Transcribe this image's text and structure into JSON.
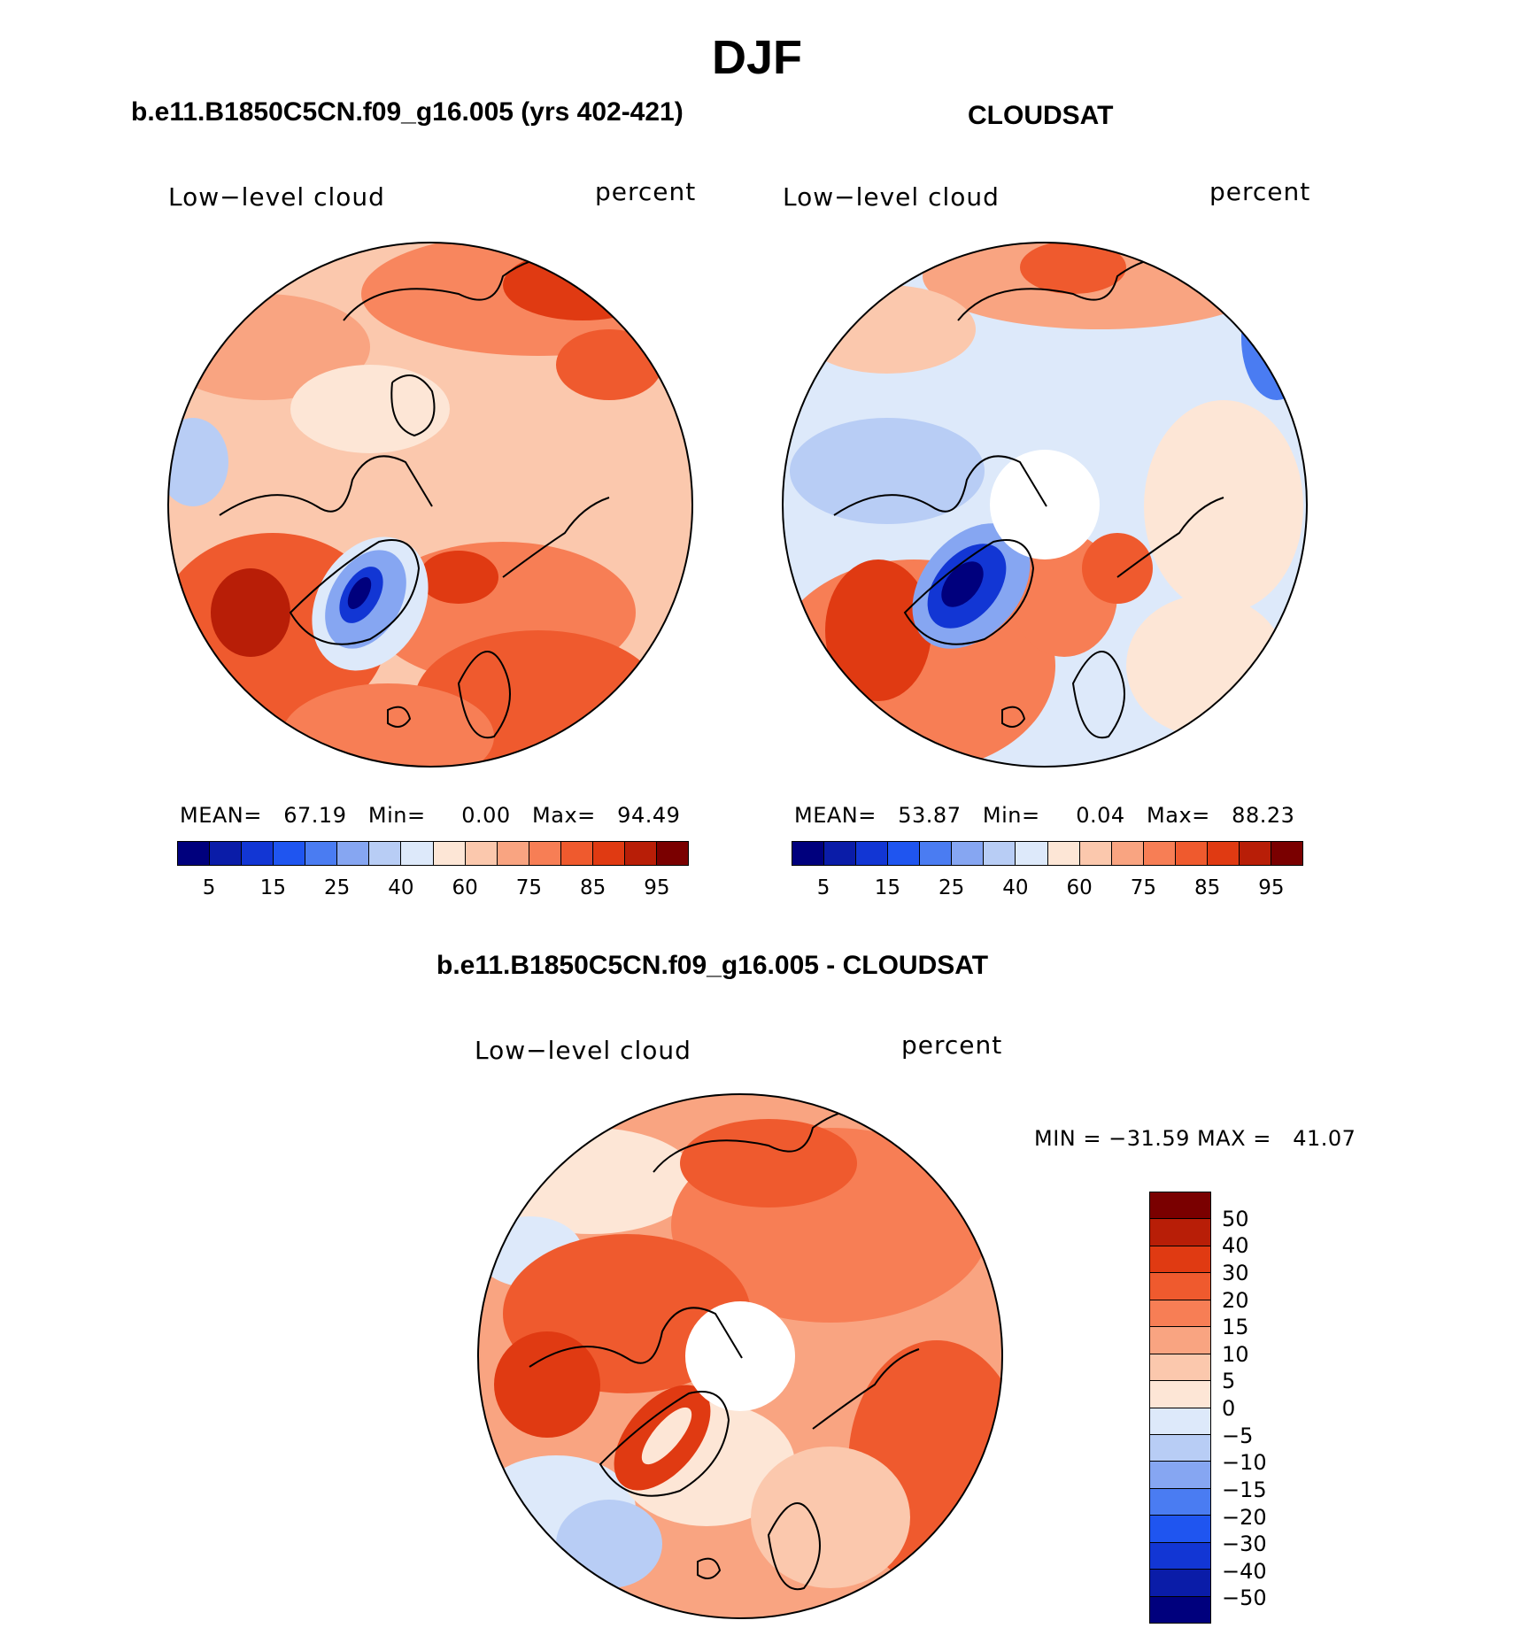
{
  "season_title": "DJF",
  "panels": {
    "model": {
      "title": "b.e11.B1850C5CN.f09_g16.005 (yrs 402-421)",
      "variable": "Low−level cloud",
      "units": "percent",
      "stats": {
        "mean_label": "MEAN=",
        "mean": "67.19",
        "min_label": "Min=",
        "min": "0.00",
        "max_label": "Max=",
        "max": "94.49"
      }
    },
    "obs": {
      "title": "CLOUDSAT",
      "variable": "Low−level cloud",
      "units": "percent",
      "stats": {
        "mean_label": "MEAN=",
        "mean": "53.87",
        "min_label": "Min=",
        "min": "0.04",
        "max_label": "Max=",
        "max": "88.23"
      }
    },
    "diff": {
      "title": "b.e11.B1850C5CN.f09_g16.005 - CLOUDSAT",
      "variable": "Low−level cloud",
      "units": "percent",
      "stats_line": "MIN = −31.59 MAX =   41.07"
    }
  },
  "colorbar_abs": {
    "colors": [
      "#00007d",
      "#0a1ca8",
      "#1236d4",
      "#1f55f0",
      "#4a7cf2",
      "#86a6f2",
      "#b8cdf5",
      "#dde9fa",
      "#fde6d6",
      "#fbc8ad",
      "#f9a481",
      "#f77e55",
      "#ef5a2e",
      "#e03a12",
      "#b81e07",
      "#7a0000"
    ],
    "tick_labels": [
      "5",
      "15",
      "25",
      "40",
      "60",
      "75",
      "85",
      "95"
    ]
  },
  "colorbar_diff": {
    "colors": [
      "#7a0000",
      "#b81e07",
      "#e03a12",
      "#ef5a2e",
      "#f77e55",
      "#f9a481",
      "#fbc8ad",
      "#fde6d6",
      "#dde9fa",
      "#b8cdf5",
      "#86a6f2",
      "#4a7cf2",
      "#1f55f0",
      "#1236d4",
      "#0a1ca8",
      "#00007d"
    ],
    "tick_labels": [
      "50",
      "40",
      "30",
      "20",
      "15",
      "10",
      "5",
      "0",
      "−5",
      "−10",
      "−15",
      "−20",
      "−30",
      "−40",
      "−50"
    ]
  },
  "map_fill": {
    "model_base": "#fbc8ad",
    "obs_base": "#dde9fa",
    "diff_base": "#f9a481"
  }
}
